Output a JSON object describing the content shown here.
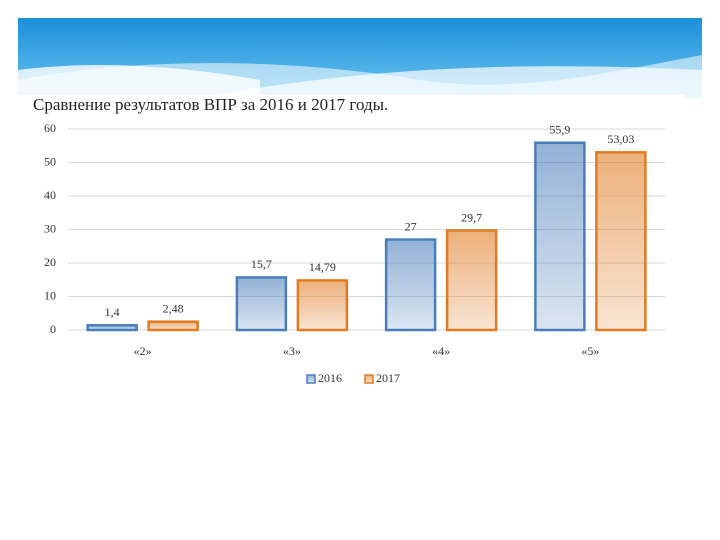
{
  "chart_data": {
    "type": "bar",
    "title": "Сравнение результатов ВПР за 2016 и 2017 годы.",
    "categories": [
      "«2»",
      "«3»",
      "«4»",
      "«5»"
    ],
    "series": [
      {
        "name": "2016",
        "color": "#4a7ebb",
        "values": [
          1.4,
          15.7,
          27,
          55.9
        ],
        "value_labels": [
          "1,4",
          "15,7",
          "27",
          "55,9"
        ]
      },
      {
        "name": "2017",
        "color": "#e07b22",
        "values": [
          2.48,
          14.79,
          29.7,
          53.03
        ],
        "value_labels": [
          "2,48",
          "14,79",
          "29,7",
          "53,03"
        ]
      }
    ],
    "ylim": [
      0,
      60
    ],
    "yticks": [
      0,
      10,
      20,
      30,
      40,
      50,
      60
    ],
    "grid": true,
    "legend": "bottom"
  }
}
